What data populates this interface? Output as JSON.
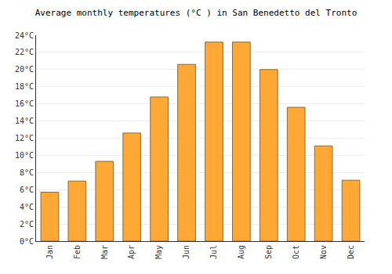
{
  "chart_data": {
    "type": "bar",
    "title": "Average monthly temperatures (°C ) in San Benedetto del Tronto",
    "categories": [
      "Jan",
      "Feb",
      "Mar",
      "Apr",
      "May",
      "Jun",
      "Jul",
      "Aug",
      "Sep",
      "Oct",
      "Nov",
      "Dec"
    ],
    "values": [
      5.7,
      7.0,
      9.3,
      12.6,
      16.8,
      20.6,
      23.2,
      23.2,
      20.0,
      15.6,
      11.1,
      7.1
    ],
    "color": "#ffa836",
    "ylim": [
      0,
      24
    ],
    "yticks": [
      {
        "value": 0,
        "label": "0°C"
      },
      {
        "value": 2,
        "label": "2°C"
      },
      {
        "value": 4,
        "label": "4°C"
      },
      {
        "value": 6,
        "label": "6°C"
      },
      {
        "value": 8,
        "label": "8°C"
      },
      {
        "value": 10,
        "label": "10°C"
      },
      {
        "value": 12,
        "label": "12°C"
      },
      {
        "value": 14,
        "label": "14°C"
      },
      {
        "value": 16,
        "label": "16°C"
      },
      {
        "value": 18,
        "label": "18°C"
      },
      {
        "value": 20,
        "label": "20°C"
      },
      {
        "value": 22,
        "label": "22°C"
      },
      {
        "value": 24,
        "label": "24°C"
      }
    ],
    "grid": true
  }
}
